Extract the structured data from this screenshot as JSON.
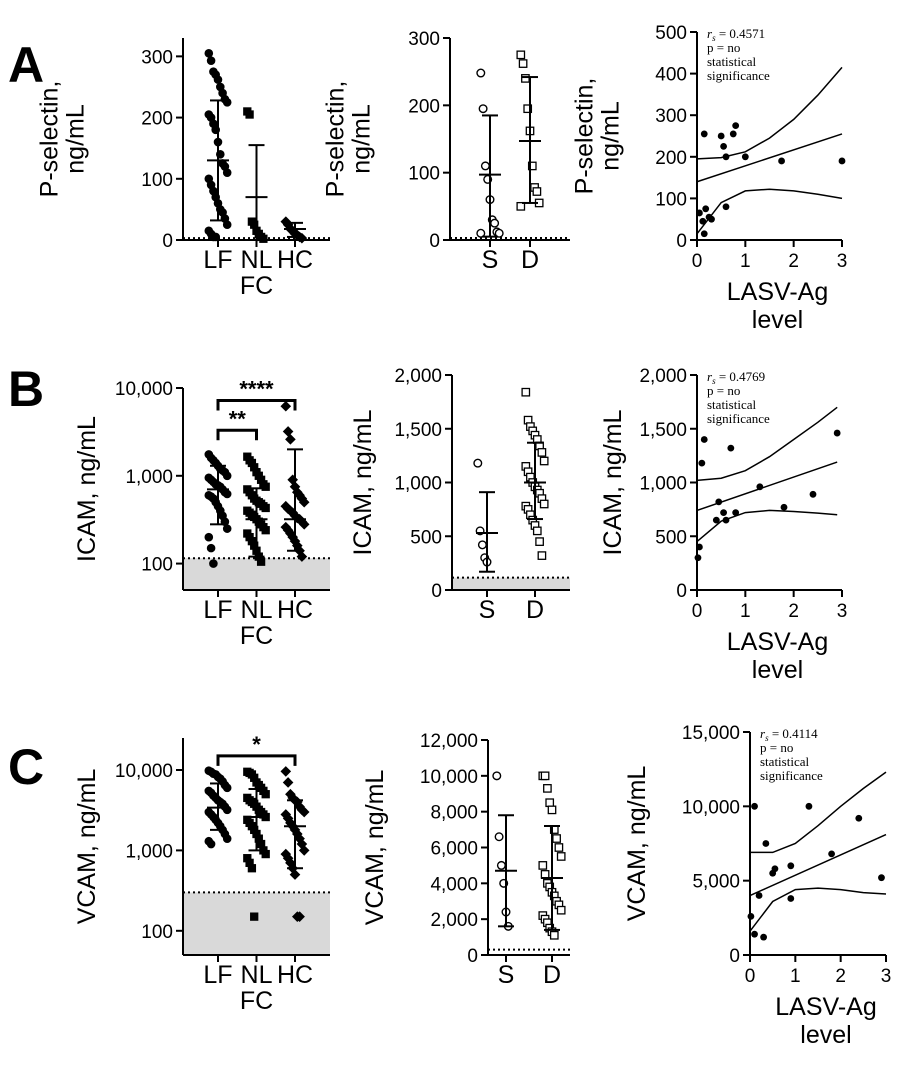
{
  "figure": {
    "panel_letters": [
      "A",
      "B",
      "C"
    ],
    "x_axis_title_line1": "LASV-Ag",
    "x_axis_title_line2": "level",
    "rs_prefix": "r",
    "rs_subscript": "s",
    "stat_line2": "p = no",
    "stat_line3": "statistical",
    "stat_line4": "significance"
  },
  "chart_data": [
    {
      "id": "A1",
      "type": "scatter",
      "plot": "dot",
      "ylabel": "P-selectin,\nng/mL",
      "categories": [
        {
          "label": "LF"
        },
        {
          "label": "NL",
          "label2": "FC"
        },
        {
          "label": "HC"
        }
      ],
      "ylim": [
        0,
        330
      ],
      "yticks": [
        0,
        100,
        200,
        300
      ],
      "ytick_labels": [
        "0",
        "100",
        "200",
        "300"
      ],
      "detection_limit": 3,
      "groups": [
        {
          "marker": "circle-filled",
          "mean": 130,
          "sd_low": 32,
          "sd_high": 228,
          "values": [
            305,
            293,
            275,
            270,
            262,
            250,
            240,
            230,
            225,
            205,
            200,
            190,
            180,
            160,
            140,
            125,
            120,
            110,
            100,
            90,
            80,
            70,
            60,
            50,
            45,
            35,
            25,
            15,
            10,
            5,
            5
          ]
        },
        {
          "marker": "square-filled",
          "mean": 70,
          "sd_low": 0,
          "sd_high": 155,
          "values": [
            210,
            205,
            30,
            25,
            15,
            10,
            5,
            2
          ]
        },
        {
          "marker": "diamond-filled",
          "mean": 18,
          "sd_low": 5,
          "sd_high": 28,
          "values": [
            30,
            25,
            18,
            15,
            10,
            8,
            5,
            3
          ]
        }
      ]
    },
    {
      "id": "A2",
      "type": "scatter",
      "plot": "dot",
      "ylabel": "P-selectin,\nng/mL",
      "categories": [
        {
          "label": "S"
        },
        {
          "label": "D"
        }
      ],
      "ylim": [
        0,
        300
      ],
      "yticks": [
        0,
        100,
        200,
        300
      ],
      "ytick_labels": [
        "0",
        "100",
        "200",
        "300"
      ],
      "detection_limit": 3,
      "groups": [
        {
          "marker": "circle-open",
          "mean": 97,
          "sd_low": 5,
          "sd_high": 185,
          "values": [
            248,
            195,
            110,
            90,
            60,
            30,
            25,
            12,
            10,
            10
          ]
        },
        {
          "marker": "square-open",
          "mean": 147,
          "sd_low": 55,
          "sd_high": 242,
          "values": [
            275,
            262,
            240,
            195,
            162,
            110,
            78,
            72,
            55,
            50
          ]
        }
      ]
    },
    {
      "id": "A3",
      "type": "scatter",
      "plot": "correlation",
      "ylabel": "P-selectin,\nng/mL",
      "xlim": [
        0,
        3
      ],
      "xticks": [
        0,
        1,
        2,
        3
      ],
      "xtick_labels": [
        "0",
        "1",
        "2",
        "3"
      ],
      "ylim": [
        0,
        500
      ],
      "yticks": [
        0,
        100,
        200,
        300,
        400,
        500
      ],
      "ytick_labels": [
        "0",
        "100",
        "200",
        "300",
        "400",
        "500"
      ],
      "rs_value": " = 0.4571",
      "points": [
        [
          0.05,
          65
        ],
        [
          0.12,
          45
        ],
        [
          0.15,
          15
        ],
        [
          0.18,
          75
        ],
        [
          0.25,
          55
        ],
        [
          0.3,
          50
        ],
        [
          0.15,
          255
        ],
        [
          0.5,
          250
        ],
        [
          0.55,
          225
        ],
        [
          0.6,
          80
        ],
        [
          0.6,
          200
        ],
        [
          0.75,
          255
        ],
        [
          0.8,
          275
        ],
        [
          1.0,
          200
        ],
        [
          1.75,
          190
        ],
        [
          3.0,
          190
        ]
      ],
      "fit": {
        "x0": 0,
        "y0": 140,
        "x1": 3,
        "y1": 255
      },
      "ci_upper": [
        [
          0,
          195
        ],
        [
          0.5,
          198
        ],
        [
          1.0,
          212
        ],
        [
          1.5,
          245
        ],
        [
          2.0,
          290
        ],
        [
          2.5,
          348
        ],
        [
          3.0,
          415
        ]
      ],
      "ci_lower": [
        [
          0,
          15
        ],
        [
          0.5,
          90
        ],
        [
          1.0,
          118
        ],
        [
          1.5,
          122
        ],
        [
          2.0,
          118
        ],
        [
          2.5,
          110
        ],
        [
          3.0,
          100
        ]
      ]
    },
    {
      "id": "B1",
      "type": "scatter",
      "plot": "dot",
      "scale": "log",
      "ylabel": "ICAM, ng/mL",
      "categories": [
        {
          "label": "LF"
        },
        {
          "label": "NL",
          "label2": "FC"
        },
        {
          "label": "HC"
        }
      ],
      "ylim": [
        50,
        10000
      ],
      "yticks": [
        100,
        1000,
        10000
      ],
      "ytick_labels": [
        "100",
        "1,000",
        "10,000"
      ],
      "shade_below": 115,
      "groups": [
        {
          "marker": "circle-filled",
          "mean": 700,
          "sd_low": 280,
          "sd_high": 1300,
          "values": [
            1750,
            1600,
            1500,
            1400,
            1300,
            1200,
            1150,
            1100,
            1000,
            950,
            900,
            850,
            800,
            780,
            750,
            700,
            650,
            620,
            600,
            580,
            550,
            500,
            450,
            400,
            350,
            300,
            250,
            200,
            150,
            100
          ]
        },
        {
          "marker": "square-filled",
          "mean": 320,
          "sd_low": 120,
          "sd_high": 720,
          "values": [
            1650,
            1500,
            1400,
            1250,
            1100,
            1000,
            900,
            800,
            750,
            700,
            650,
            600,
            550,
            520,
            500,
            480,
            450,
            430,
            400,
            380,
            360,
            340,
            320,
            300,
            280,
            260,
            240,
            220,
            200,
            180,
            160,
            140,
            120,
            105
          ]
        },
        {
          "marker": "diamond-filled",
          "mean": 320,
          "sd_low": 140,
          "sd_high": 2000,
          "values": [
            6200,
            3200,
            2600,
            900,
            750,
            650,
            600,
            550,
            500,
            450,
            420,
            400,
            380,
            350,
            330,
            320,
            300,
            280,
            260,
            240,
            220,
            200,
            180,
            160,
            140,
            120
          ]
        }
      ],
      "significance": [
        {
          "from": 0,
          "to": 1,
          "label": "**",
          "y": 3300
        },
        {
          "from": 0,
          "to": 2,
          "label": "****",
          "y": 7200
        }
      ]
    },
    {
      "id": "B2",
      "type": "scatter",
      "plot": "dot",
      "ylabel": "ICAM, ng/mL",
      "categories": [
        {
          "label": "S"
        },
        {
          "label": "D"
        }
      ],
      "ylim": [
        0,
        2000
      ],
      "yticks": [
        0,
        500,
        1000,
        1500,
        2000
      ],
      "ytick_labels": [
        "0",
        "500",
        "1,000",
        "1,500",
        "2,000"
      ],
      "shade_below": 115,
      "groups": [
        {
          "marker": "circle-open",
          "mean": 530,
          "sd_low": 170,
          "sd_high": 910,
          "values": [
            1180,
            550,
            420,
            300,
            260
          ]
        },
        {
          "marker": "square-open",
          "mean": 1000,
          "sd_low": 660,
          "sd_high": 1370,
          "values": [
            1840,
            1580,
            1520,
            1480,
            1440,
            1400,
            1340,
            1280,
            1200,
            1150,
            1100,
            1050,
            1000,
            960,
            930,
            900,
            850,
            800,
            780,
            750,
            700,
            650,
            600,
            550,
            450,
            320
          ]
        }
      ]
    },
    {
      "id": "B3",
      "type": "scatter",
      "plot": "correlation",
      "ylabel": "ICAM, ng/mL",
      "xlim": [
        0,
        3
      ],
      "xticks": [
        0,
        1,
        2,
        3
      ],
      "xtick_labels": [
        "0",
        "1",
        "2",
        "3"
      ],
      "ylim": [
        0,
        2000
      ],
      "yticks": [
        0,
        500,
        1000,
        1500,
        2000
      ],
      "ytick_labels": [
        "0",
        "500",
        "1,000",
        "1,500",
        "2,000"
      ],
      "rs_value": " = 0.4769",
      "points": [
        [
          0.02,
          300
        ],
        [
          0.05,
          400
        ],
        [
          0.1,
          1180
        ],
        [
          0.15,
          1400
        ],
        [
          0.4,
          650
        ],
        [
          0.45,
          820
        ],
        [
          0.55,
          720
        ],
        [
          0.6,
          650
        ],
        [
          0.7,
          1320
        ],
        [
          0.8,
          720
        ],
        [
          1.3,
          960
        ],
        [
          1.8,
          770
        ],
        [
          2.4,
          890
        ],
        [
          2.9,
          1460
        ]
      ],
      "fit": {
        "x0": 0,
        "y0": 740,
        "x1": 2.9,
        "y1": 1190
      },
      "ci_upper": [
        [
          0,
          1020
        ],
        [
          0.5,
          1040
        ],
        [
          1.0,
          1110
        ],
        [
          1.5,
          1240
        ],
        [
          2.0,
          1400
        ],
        [
          2.5,
          1560
        ],
        [
          2.9,
          1700
        ]
      ],
      "ci_lower": [
        [
          0,
          450
        ],
        [
          0.5,
          640
        ],
        [
          1.0,
          720
        ],
        [
          1.5,
          740
        ],
        [
          2.0,
          730
        ],
        [
          2.5,
          715
        ],
        [
          2.9,
          700
        ]
      ]
    },
    {
      "id": "C1",
      "type": "scatter",
      "plot": "dot",
      "scale": "log",
      "ylabel": "VCAM, ng/mL",
      "categories": [
        {
          "label": "LF"
        },
        {
          "label": "NL",
          "label2": "FC"
        },
        {
          "label": "HC"
        }
      ],
      "ylim": [
        50,
        25000
      ],
      "yticks": [
        100,
        1000,
        10000
      ],
      "ytick_labels": [
        "100",
        "1,000",
        "10,000"
      ],
      "shade_below": 300,
      "groups": [
        {
          "marker": "circle-filled",
          "mean": 3400,
          "sd_low": 1800,
          "sd_high": 6800,
          "values": [
            9800,
            9500,
            9000,
            8800,
            8200,
            7800,
            7200,
            6500,
            6000,
            5500,
            5200,
            4800,
            4500,
            4200,
            4000,
            3800,
            3500,
            3200,
            3000,
            2800,
            2600,
            2400,
            2200,
            2000,
            1800,
            1600,
            1400,
            1300,
            1200
          ]
        },
        {
          "marker": "square-filled",
          "mean": 2600,
          "sd_low": 1000,
          "sd_high": 5800,
          "values": [
            9500,
            9200,
            8800,
            8000,
            7000,
            6500,
            6000,
            5500,
            5000,
            4500,
            4200,
            4000,
            3800,
            3500,
            3200,
            3000,
            2800,
            2600,
            2400,
            2200,
            2000,
            1800,
            1600,
            1400,
            1200,
            1000,
            900,
            800,
            700,
            600,
            150
          ]
        },
        {
          "marker": "diamond-filled",
          "mean": 2000,
          "sd_low": 600,
          "sd_high": 4200,
          "values": [
            9600,
            7000,
            5000,
            4500,
            4200,
            4000,
            3500,
            3200,
            3000,
            2800,
            2500,
            2200,
            2000,
            1800,
            1600,
            1400,
            1200,
            1000,
            900,
            800,
            700,
            600,
            500,
            150,
            150
          ]
        }
      ],
      "significance": [
        {
          "from": 0,
          "to": 2,
          "label": "*",
          "y": 15000
        }
      ]
    },
    {
      "id": "C2",
      "type": "scatter",
      "plot": "dot",
      "ylabel": "VCAM, ng/mL",
      "categories": [
        {
          "label": "S"
        },
        {
          "label": "D"
        }
      ],
      "ylim": [
        0,
        12000
      ],
      "yticks": [
        0,
        2000,
        4000,
        6000,
        8000,
        10000,
        12000
      ],
      "ytick_labels": [
        "0",
        "2,000",
        "4,000",
        "6,000",
        "8,000",
        "10,000",
        "12,000"
      ],
      "detection_limit": 300,
      "groups": [
        {
          "marker": "circle-open",
          "mean": 4700,
          "sd_low": 1600,
          "sd_high": 7800,
          "values": [
            10000,
            6600,
            5000,
            4000,
            2400,
            1600
          ]
        },
        {
          "marker": "square-open",
          "mean": 4300,
          "sd_low": 1400,
          "sd_high": 7200,
          "values": [
            10000,
            10000,
            9300,
            8500,
            8100,
            7000,
            6500,
            6000,
            5500,
            5000,
            4500,
            4000,
            3800,
            3500,
            3300,
            3000,
            2800,
            2500,
            2200,
            2000,
            1800,
            1500,
            1300,
            1100
          ]
        }
      ]
    },
    {
      "id": "C3",
      "type": "scatter",
      "plot": "correlation",
      "ylabel": "VCAM, ng/mL",
      "xlim": [
        0,
        3
      ],
      "xticks": [
        0,
        1,
        2,
        3
      ],
      "xtick_labels": [
        "0",
        "1",
        "2",
        "3"
      ],
      "ylim": [
        0,
        15000
      ],
      "yticks": [
        0,
        5000,
        10000,
        15000
      ],
      "ytick_labels": [
        "0",
        "5,000",
        "10,000",
        "15,000"
      ],
      "rs_value": " = 0.4114",
      "points": [
        [
          0.02,
          2600
        ],
        [
          0.1,
          1400
        ],
        [
          0.2,
          4000
        ],
        [
          0.3,
          1200
        ],
        [
          0.35,
          7500
        ],
        [
          0.5,
          5500
        ],
        [
          0.55,
          5800
        ],
        [
          0.9,
          3800
        ],
        [
          0.9,
          6000
        ],
        [
          1.3,
          10000
        ],
        [
          1.8,
          6800
        ],
        [
          2.4,
          9200
        ],
        [
          2.9,
          5200
        ],
        [
          0.1,
          10000
        ]
      ],
      "fit": {
        "x0": 0,
        "y0": 4000,
        "x1": 3,
        "y1": 8100
      },
      "ci_upper": [
        [
          0,
          6900
        ],
        [
          0.5,
          6900
        ],
        [
          1.0,
          7500
        ],
        [
          1.5,
          8700
        ],
        [
          2.0,
          10000
        ],
        [
          2.5,
          11200
        ],
        [
          3.0,
          12300
        ]
      ],
      "ci_lower": [
        [
          0,
          1600
        ],
        [
          0.5,
          3600
        ],
        [
          1.0,
          4400
        ],
        [
          1.5,
          4500
        ],
        [
          2.0,
          4400
        ],
        [
          2.5,
          4200
        ],
        [
          3.0,
          4100
        ]
      ]
    }
  ]
}
